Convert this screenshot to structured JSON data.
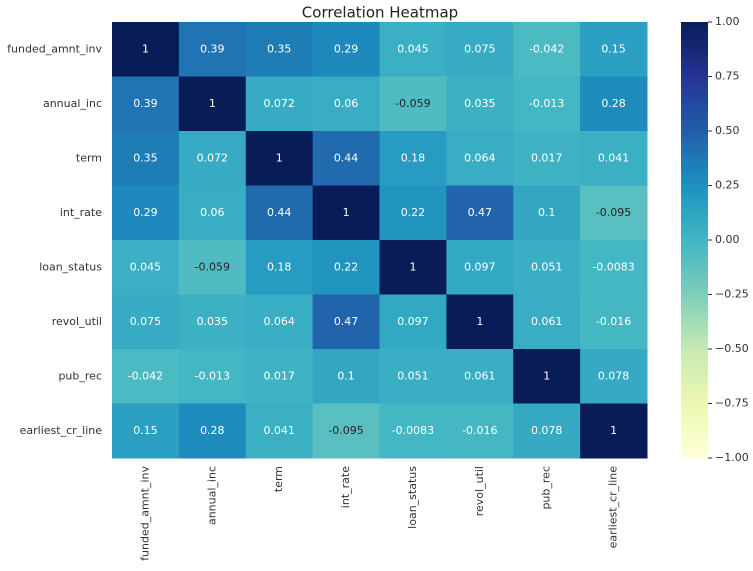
{
  "chart_data": {
    "type": "heatmap",
    "title": "Correlation Heatmap",
    "x_categories": [
      "funded_amnt_inv",
      "annual_inc",
      "term",
      "int_rate",
      "loan_status",
      "revol_util",
      "pub_rec",
      "earliest_cr_line"
    ],
    "y_categories": [
      "funded_amnt_inv",
      "annual_inc",
      "term",
      "int_rate",
      "loan_status",
      "revol_util",
      "pub_rec",
      "earliest_cr_line"
    ],
    "values": [
      [
        1,
        0.39,
        0.35,
        0.29,
        0.045,
        0.075,
        -0.042,
        0.15
      ],
      [
        0.39,
        1,
        0.072,
        0.06,
        -0.059,
        0.035,
        -0.013,
        0.28
      ],
      [
        0.35,
        0.072,
        1,
        0.44,
        0.18,
        0.064,
        0.017,
        0.041
      ],
      [
        0.29,
        0.06,
        0.44,
        1,
        0.22,
        0.47,
        0.1,
        -0.095
      ],
      [
        0.045,
        -0.059,
        0.18,
        0.22,
        1,
        0.097,
        0.051,
        -0.0083
      ],
      [
        0.075,
        0.035,
        0.064,
        0.47,
        0.097,
        1,
        0.061,
        -0.016
      ],
      [
        -0.042,
        -0.013,
        0.017,
        0.1,
        0.051,
        0.061,
        1,
        0.078
      ],
      [
        0.15,
        0.28,
        0.041,
        -0.095,
        -0.0083,
        -0.016,
        0.078,
        1
      ]
    ],
    "colormap": "YlGnBu",
    "clim": [
      -1,
      1
    ],
    "cticks": [
      {
        "value": -1,
        "label": "−1.00"
      },
      {
        "value": -0.75,
        "label": "−0.75"
      },
      {
        "value": -0.5,
        "label": "−0.50"
      },
      {
        "value": -0.25,
        "label": "−0.25"
      },
      {
        "value": 0,
        "label": "0.00"
      },
      {
        "value": 0.25,
        "label": "0.25"
      },
      {
        "value": 0.5,
        "label": "0.50"
      },
      {
        "value": 0.75,
        "label": "0.75"
      },
      {
        "value": 1,
        "label": "1.00"
      }
    ]
  }
}
